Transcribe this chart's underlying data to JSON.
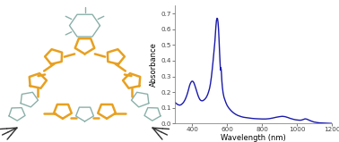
{
  "xlabel": "Wavelength (nm)",
  "ylabel": "Absorbance",
  "xlim": [
    300,
    1200
  ],
  "ylim": [
    0.0,
    0.75
  ],
  "yticks": [
    0.0,
    0.1,
    0.2,
    0.3,
    0.4,
    0.5,
    0.6,
    0.7
  ],
  "xticks": [
    400,
    600,
    800,
    1000,
    1200
  ],
  "line_color": "#1a1aaa",
  "line_width": 1.0,
  "bg_color": "#ffffff",
  "mol_bg": "#ffffff",
  "spine_color": "#888888",
  "tick_color": "#444444",
  "label_color": "#000000",
  "spectrum_points": [
    [
      300,
      0.135
    ],
    [
      305,
      0.132
    ],
    [
      310,
      0.128
    ],
    [
      315,
      0.123
    ],
    [
      320,
      0.12
    ],
    [
      325,
      0.118
    ],
    [
      330,
      0.117
    ],
    [
      335,
      0.119
    ],
    [
      340,
      0.122
    ],
    [
      345,
      0.128
    ],
    [
      350,
      0.133
    ],
    [
      355,
      0.142
    ],
    [
      360,
      0.152
    ],
    [
      365,
      0.165
    ],
    [
      370,
      0.18
    ],
    [
      375,
      0.198
    ],
    [
      380,
      0.218
    ],
    [
      385,
      0.24
    ],
    [
      390,
      0.255
    ],
    [
      395,
      0.265
    ],
    [
      400,
      0.27
    ],
    [
      405,
      0.268
    ],
    [
      410,
      0.26
    ],
    [
      415,
      0.245
    ],
    [
      420,
      0.228
    ],
    [
      425,
      0.21
    ],
    [
      430,
      0.192
    ],
    [
      435,
      0.175
    ],
    [
      440,
      0.162
    ],
    [
      445,
      0.152
    ],
    [
      450,
      0.147
    ],
    [
      455,
      0.145
    ],
    [
      460,
      0.145
    ],
    [
      465,
      0.148
    ],
    [
      470,
      0.152
    ],
    [
      475,
      0.158
    ],
    [
      480,
      0.165
    ],
    [
      485,
      0.175
    ],
    [
      490,
      0.188
    ],
    [
      495,
      0.205
    ],
    [
      500,
      0.225
    ],
    [
      505,
      0.255
    ],
    [
      510,
      0.295
    ],
    [
      515,
      0.345
    ],
    [
      520,
      0.4
    ],
    [
      525,
      0.46
    ],
    [
      530,
      0.52
    ],
    [
      533,
      0.57
    ],
    [
      536,
      0.62
    ],
    [
      539,
      0.655
    ],
    [
      542,
      0.67
    ],
    [
      545,
      0.668
    ],
    [
      548,
      0.645
    ],
    [
      551,
      0.6
    ],
    [
      554,
      0.53
    ],
    [
      557,
      0.45
    ],
    [
      560,
      0.38
    ],
    [
      562,
      0.34
    ],
    [
      564,
      0.355
    ],
    [
      566,
      0.345
    ],
    [
      568,
      0.31
    ],
    [
      570,
      0.27
    ],
    [
      573,
      0.23
    ],
    [
      577,
      0.195
    ],
    [
      582,
      0.168
    ],
    [
      588,
      0.148
    ],
    [
      594,
      0.13
    ],
    [
      600,
      0.115
    ],
    [
      610,
      0.098
    ],
    [
      620,
      0.085
    ],
    [
      630,
      0.074
    ],
    [
      640,
      0.065
    ],
    [
      650,
      0.058
    ],
    [
      660,
      0.052
    ],
    [
      670,
      0.048
    ],
    [
      680,
      0.044
    ],
    [
      690,
      0.041
    ],
    [
      700,
      0.039
    ],
    [
      720,
      0.036
    ],
    [
      740,
      0.033
    ],
    [
      760,
      0.031
    ],
    [
      780,
      0.03
    ],
    [
      800,
      0.029
    ],
    [
      820,
      0.029
    ],
    [
      840,
      0.031
    ],
    [
      860,
      0.035
    ],
    [
      880,
      0.04
    ],
    [
      900,
      0.044
    ],
    [
      915,
      0.046
    ],
    [
      930,
      0.044
    ],
    [
      945,
      0.039
    ],
    [
      960,
      0.033
    ],
    [
      975,
      0.028
    ],
    [
      990,
      0.024
    ],
    [
      1005,
      0.022
    ],
    [
      1015,
      0.021
    ],
    [
      1025,
      0.022
    ],
    [
      1035,
      0.026
    ],
    [
      1045,
      0.03
    ],
    [
      1055,
      0.028
    ],
    [
      1065,
      0.023
    ],
    [
      1075,
      0.018
    ],
    [
      1085,
      0.014
    ],
    [
      1095,
      0.01
    ],
    [
      1105,
      0.008
    ],
    [
      1115,
      0.006
    ],
    [
      1130,
      0.004
    ],
    [
      1150,
      0.003
    ],
    [
      1170,
      0.002
    ],
    [
      1190,
      0.001
    ],
    [
      1200,
      0.001
    ]
  ],
  "mol_orange": "#e8a020",
  "mol_gray": "#8ab0a8",
  "mol_dark": "#303030",
  "mol_black": "#181818"
}
